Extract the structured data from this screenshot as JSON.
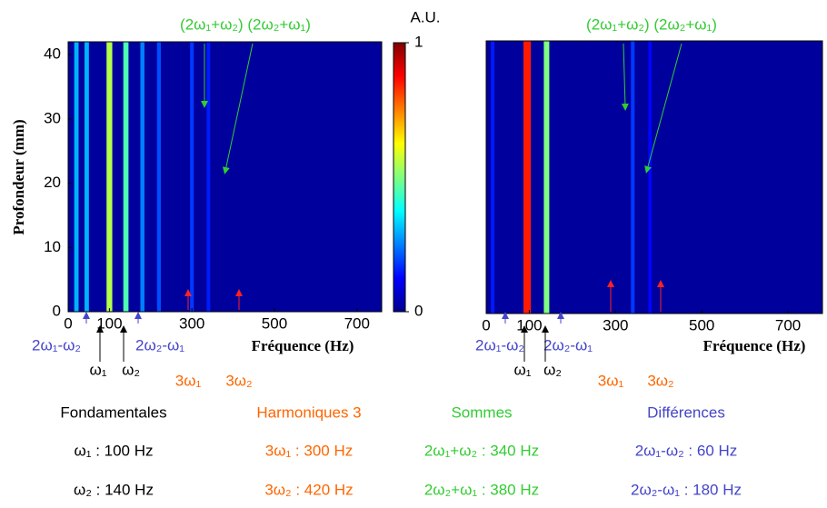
{
  "chart_data": [
    {
      "type": "heatmap",
      "xlabel": "Fréquence (Hz)",
      "ylabel": "Profondeur (mm)",
      "xlim": [
        0,
        760
      ],
      "xticks": [
        0,
        100,
        300,
        500,
        700
      ],
      "ylim": [
        0,
        42
      ],
      "yticks": [
        0,
        10,
        20,
        30,
        40
      ],
      "background": "#00009c",
      "x": [
        20,
        45,
        100,
        140,
        180,
        220,
        300,
        340
      ],
      "values": [
        0.3,
        0.3,
        0.55,
        0.45,
        0.25,
        0.2,
        0.18,
        0.15
      ],
      "colorbar": {
        "label": "A.U.",
        "lim": [
          0,
          1
        ],
        "ticks": [
          0,
          1
        ]
      },
      "annotations": {
        "sums": "(2ω₁+ω₂) (2ω₂+ω₁)",
        "diff1": "2ω₁-ω₂",
        "diff2": "2ω₂-ω₁",
        "f1": "ω₁",
        "f2": "ω₂",
        "h1": "3ω₁",
        "h2": "3ω₂"
      }
    },
    {
      "type": "heatmap",
      "xlabel": "Fréquence (Hz)",
      "xlim": [
        0,
        780
      ],
      "xticks": [
        0,
        100,
        300,
        500,
        700
      ],
      "ylim": [
        0,
        42
      ],
      "background": "#00009c",
      "x": [
        15,
        95,
        140,
        340,
        380
      ],
      "values": [
        0.15,
        0.85,
        0.5,
        0.18,
        0.13
      ],
      "annotations": {
        "sums": "(2ω₁+ω₂) (2ω₂+ω₁)",
        "diff1": "2ω₁-ω₂",
        "diff2": "2ω₂-ω₁",
        "f1": "ω₁",
        "f2": "ω₂",
        "h1": "3ω₁",
        "h2": "3ω₂"
      }
    }
  ],
  "legend_table": {
    "headers": [
      "Fondamentales",
      "Harmoniques 3",
      "Sommes",
      "Différences"
    ],
    "rows": [
      [
        "ω₁ : 100 Hz",
        "3ω₁ : 300 Hz",
        "2ω₁+ω₂ : 340 Hz",
        "2ω₁-ω₂ : 60 Hz"
      ],
      [
        "ω₂ : 140 Hz",
        "3ω₂ : 420 Hz",
        "2ω₂+ω₁ : 380 Hz",
        "2ω₂-ω₁ : 180 Hz"
      ]
    ]
  }
}
